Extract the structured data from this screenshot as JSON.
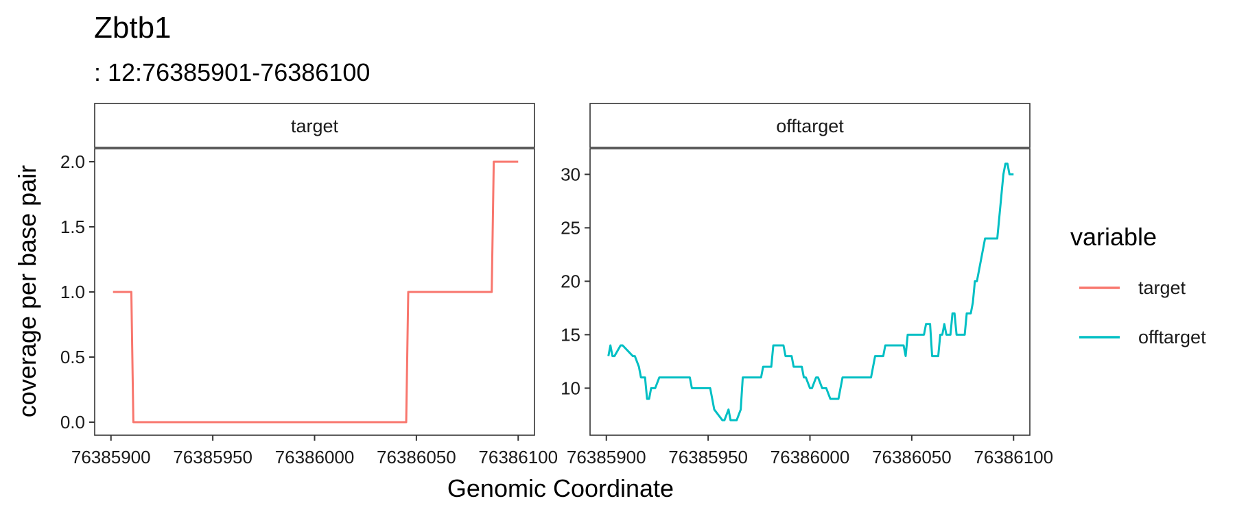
{
  "header": {
    "title": "Zbtb1",
    "subtitle": ": 12:76385901-76386100"
  },
  "chart_data": {
    "type": "line",
    "xlabel": "Genomic Coordinate",
    "ylabel": "coverage per base pair",
    "legend": {
      "title": "variable",
      "placement": "right",
      "entries": [
        {
          "label": "target",
          "color": "#F8766D"
        },
        {
          "label": "offtarget",
          "color": "#00BFC4"
        }
      ]
    },
    "grid": false,
    "facets": [
      {
        "label": "target",
        "color": "#F8766D",
        "xlim": [
          76385892,
          76386108
        ],
        "ylim": [
          -0.1,
          2.1
        ],
        "x_ticks": [
          76385900,
          76385950,
          76386000,
          76386050,
          76386100
        ],
        "x_tick_labels": [
          "76385900",
          "76385950",
          "76386000",
          "76386050",
          "76386100"
        ],
        "y_ticks": [
          0,
          0.5,
          1,
          1.5,
          2
        ],
        "y_tick_labels": [
          "0.0",
          "0.5",
          "1.0",
          "1.5",
          "2.0"
        ],
        "x": [
          76385901,
          76385910,
          76385911,
          76386045,
          76386046,
          76386087,
          76386088,
          76386100
        ],
        "y": [
          1,
          1,
          0,
          0,
          1,
          1,
          2,
          2
        ]
      },
      {
        "label": "offtarget",
        "color": "#00BFC4",
        "xlim": [
          76385892,
          76386108
        ],
        "ylim": [
          5.6,
          32.4
        ],
        "x_ticks": [
          76385900,
          76385950,
          76386000,
          76386050,
          76386100
        ],
        "x_tick_labels": [
          "76385900",
          "76385950",
          "76386000",
          "76386050",
          "76386100"
        ],
        "y_ticks": [
          10,
          15,
          20,
          25,
          30
        ],
        "y_tick_labels": [
          "10",
          "15",
          "20",
          "25",
          "30"
        ],
        "x": [
          76385901,
          76385902,
          76385903,
          76385904,
          76385907,
          76385908,
          76385913,
          76385914,
          76385916,
          76385917,
          76385918,
          76385919,
          76385920,
          76385921,
          76385922,
          76385924,
          76385926,
          76385927,
          76385941,
          76385942,
          76385950,
          76385951,
          76385952,
          76385953,
          76385957,
          76385958,
          76385960,
          76385961,
          76385963,
          76385964,
          76385966,
          76385967,
          76385968,
          76385976,
          76385977,
          76385981,
          76385982,
          76385987,
          76385988,
          76385991,
          76385992,
          76385996,
          76385997,
          76385998,
          76386000,
          76386001,
          76386003,
          76386004,
          76386006,
          76386007,
          76386008,
          76386010,
          76386011,
          76386012,
          76386013,
          76386014,
          76386016,
          76386017,
          76386018,
          76386020,
          76386021,
          76386022,
          76386023,
          76386024,
          76386025,
          76386026,
          76386027,
          76386028,
          76386029,
          76386030,
          76386031,
          76386032,
          76386033,
          76386036,
          76386037,
          76386038,
          76386039,
          76386040,
          76386041,
          76386042,
          76386043,
          76386044,
          76386045,
          76386046,
          76386047,
          76386048,
          76386049,
          76386050,
          76386051,
          76386052,
          76386053,
          76386054,
          76386055,
          76386056,
          76386057,
          76386058,
          76386059,
          76386060,
          76386061,
          76386062,
          76386063,
          76386064,
          76386065,
          76386066,
          76386067,
          76386068,
          76386069,
          76386070,
          76386071,
          76386072,
          76386073,
          76386074,
          76386075,
          76386076,
          76386077,
          76386078,
          76386079,
          76386080,
          76386081,
          76386082,
          76386083,
          76386084,
          76386085,
          76386086,
          76386087,
          76386088,
          76386089,
          76386090,
          76386091,
          76386092,
          76386093,
          76386094,
          76386095,
          76386096,
          76386097,
          76386098,
          76386099,
          76386100
        ],
        "y": [
          13,
          14,
          13,
          13,
          14,
          14,
          13,
          13,
          12,
          11,
          11,
          11,
          9,
          9,
          10,
          10,
          11,
          11,
          11,
          10,
          10,
          10,
          9,
          8,
          7,
          7,
          8,
          7,
          7,
          7,
          8,
          11,
          11,
          11,
          12,
          12,
          14,
          14,
          13,
          13,
          12,
          12,
          11,
          11,
          10,
          10,
          11,
          11,
          10,
          10,
          10,
          9,
          9,
          9,
          9,
          9,
          11,
          11,
          11,
          11,
          11,
          11,
          11,
          11,
          11,
          11,
          11,
          11,
          11,
          11,
          12,
          13,
          13,
          13,
          14,
          14,
          14,
          14,
          14,
          14,
          14,
          14,
          14,
          14,
          13,
          15,
          15,
          15,
          15,
          15,
          15,
          15,
          15,
          15,
          16,
          16,
          16,
          13,
          13,
          13,
          13,
          15,
          15,
          16,
          15,
          15,
          15,
          17,
          17,
          15,
          15,
          15,
          15,
          15,
          17,
          17,
          17,
          18,
          20,
          20,
          21,
          22,
          23,
          24,
          24,
          24,
          24,
          24,
          24,
          24,
          26,
          28,
          30,
          31,
          31,
          30,
          30,
          30
        ]
      }
    ]
  }
}
